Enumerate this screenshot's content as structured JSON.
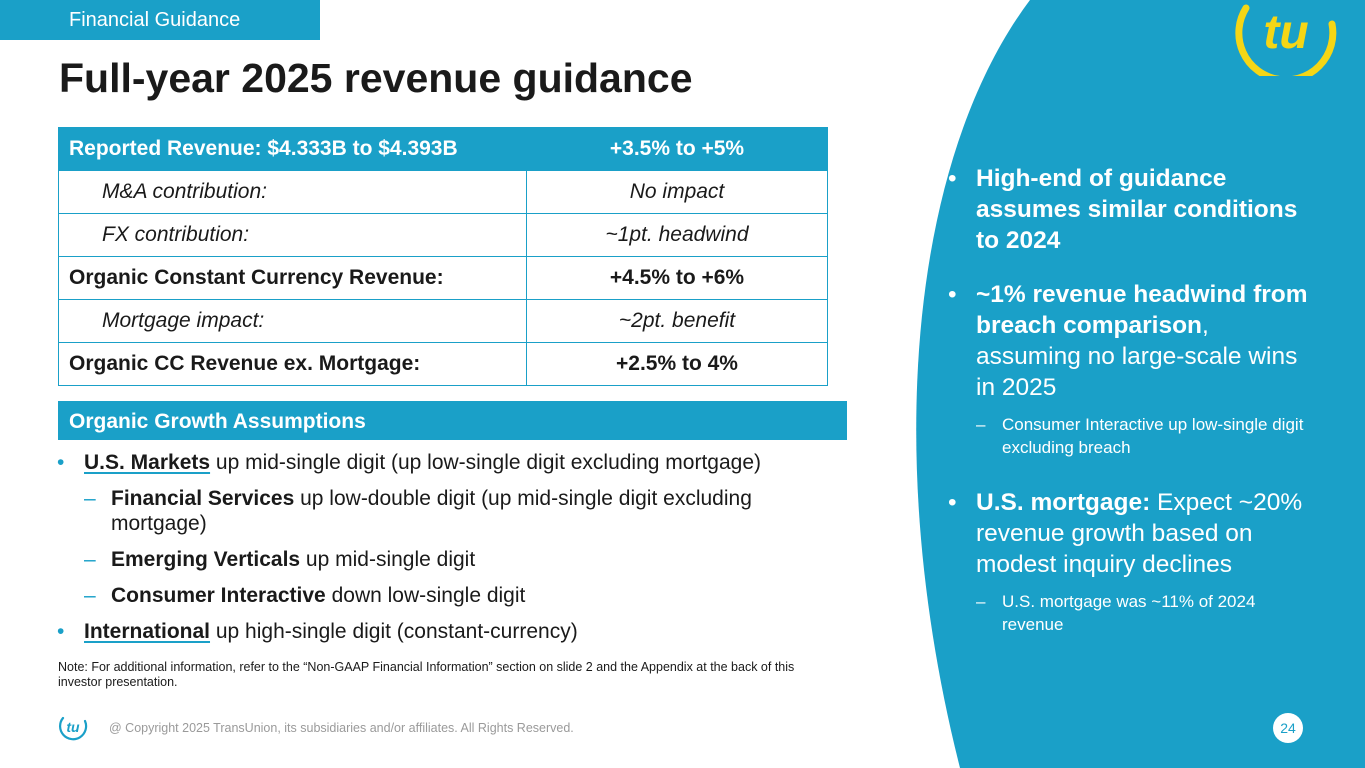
{
  "header": {
    "tag": "Financial Guidance",
    "title": "Full-year 2025 revenue guidance"
  },
  "guidance_table": {
    "rows": [
      {
        "label": "Reported Revenue: $4.333B to $4.393B",
        "value": "+3.5% to +5%"
      },
      {
        "label": "M&A contribution:",
        "value": "No impact"
      },
      {
        "label": "FX contribution:",
        "value": "~1pt. headwind"
      },
      {
        "label": "Organic Constant Currency Revenue:",
        "value": "+4.5% to +6%"
      },
      {
        "label": "Mortgage impact:",
        "value": "~2pt. benefit"
      },
      {
        "label": "Organic CC Revenue ex. Mortgage:",
        "value": "+2.5% to 4%"
      }
    ]
  },
  "assumptions": {
    "header": "Organic Growth Assumptions",
    "items": [
      {
        "bold": "U.S. Markets",
        "text": " up mid-single digit (up low-single digit excluding mortgage)"
      },
      {
        "bold": "Financial Services",
        "text": " up low-double digit (up mid-single digit excluding mortgage)"
      },
      {
        "bold": "Emerging Verticals",
        "text": " up mid-single digit"
      },
      {
        "bold": "Consumer Interactive",
        "text": " down low-single digit"
      },
      {
        "bold": "International",
        "text": " up high-single digit (constant-currency)"
      }
    ]
  },
  "note": "Note: For additional information, refer to the “Non-GAAP Financial Information” section on slide 2 and the Appendix at the back of this investor presentation.",
  "right_panel": {
    "b1": "High-end of guidance assumes similar conditions to 2024",
    "b2_bold": "~1% revenue headwind from breach comparison",
    "b2_text": ", assuming no large-scale wins in 2025",
    "b2_sub": "Consumer Interactive up low-single digit excluding breach",
    "b3_bold": "U.S. mortgage:",
    "b3_text": " Expect ~20% revenue growth based on modest inquiry declines",
    "b3_sub": "U.S. mortgage was ~11% of 2024 revenue"
  },
  "footer": {
    "copyright": "@ Copyright 2025 TransUnion, its subsidiaries and/or affiliates.  All Rights Reserved.",
    "page": "24"
  },
  "colors": {
    "accent": "#1aa0c8",
    "logo_yellow": "#f5d615"
  },
  "icons": {
    "brand_logo": "tu-logo-icon",
    "footer_logo": "tu-logo-icon"
  }
}
